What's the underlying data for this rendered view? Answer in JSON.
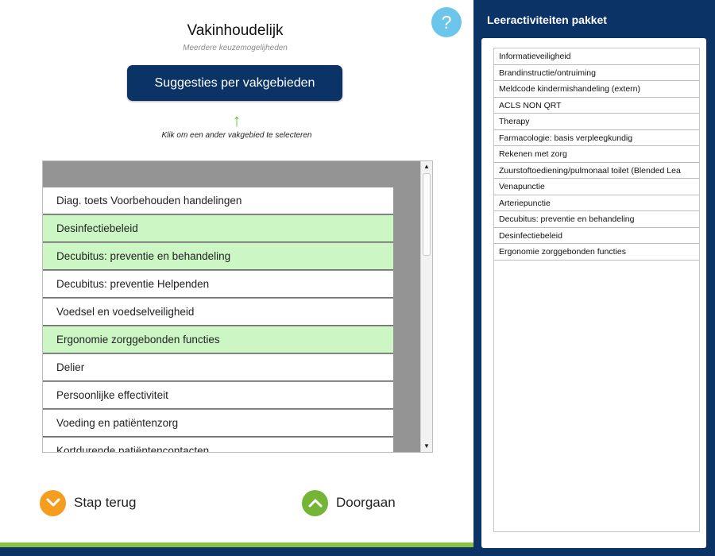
{
  "header": {
    "title": "Vakinhoudelijk",
    "subtitle": "Meerdere keuzemogelijheden",
    "help_label": "?",
    "suggest_button": "Suggesties per vakgebieden",
    "hint": "Klik om een ander vakgebied te selecteren"
  },
  "list": {
    "items": [
      {
        "label": "Diag. toets Voorbehouden handelingen",
        "selected": false
      },
      {
        "label": "Desinfectiebeleid",
        "selected": true
      },
      {
        "label": "Decubitus: preventie en behandeling",
        "selected": true
      },
      {
        "label": "Decubitus: preventie Helpenden",
        "selected": false
      },
      {
        "label": "Voedsel en voedselveiligheid",
        "selected": false
      },
      {
        "label": "Ergonomie zorggebonden functies",
        "selected": true
      },
      {
        "label": "Delier",
        "selected": false
      },
      {
        "label": "Persoonlijke effectiviteit",
        "selected": false
      },
      {
        "label": "Voeding en patiëntenzorg",
        "selected": false
      },
      {
        "label": "Kortdurende patiëntencontacten",
        "selected": false
      }
    ]
  },
  "nav": {
    "back_label": "Stap terug",
    "next_label": "Doorgaan"
  },
  "panel": {
    "title": "Leeractiviteiten pakket",
    "items": [
      "Informatieveiligheid",
      "Brandinstructie/ontruiming",
      "Meldcode kindermishandeling (extern)",
      "ACLS NON QRT",
      "Therapy",
      "Farmacologie: basis verpleegkundig",
      "Rekenen met zorg",
      "Zuurstoftoediening/pulmonaal toilet (Blended Lea",
      "Venapunctie",
      "Arteriepunctie",
      "Decubitus: preventie en behandeling",
      "Desinfectiebeleid",
      "Ergonomie zorggebonden functies"
    ]
  },
  "colors": {
    "navy": "#0c3366",
    "selected_green": "#ccf7c4",
    "help_blue": "#6cc6ec",
    "back_orange": "#f59d1f",
    "next_green": "#74b536"
  }
}
